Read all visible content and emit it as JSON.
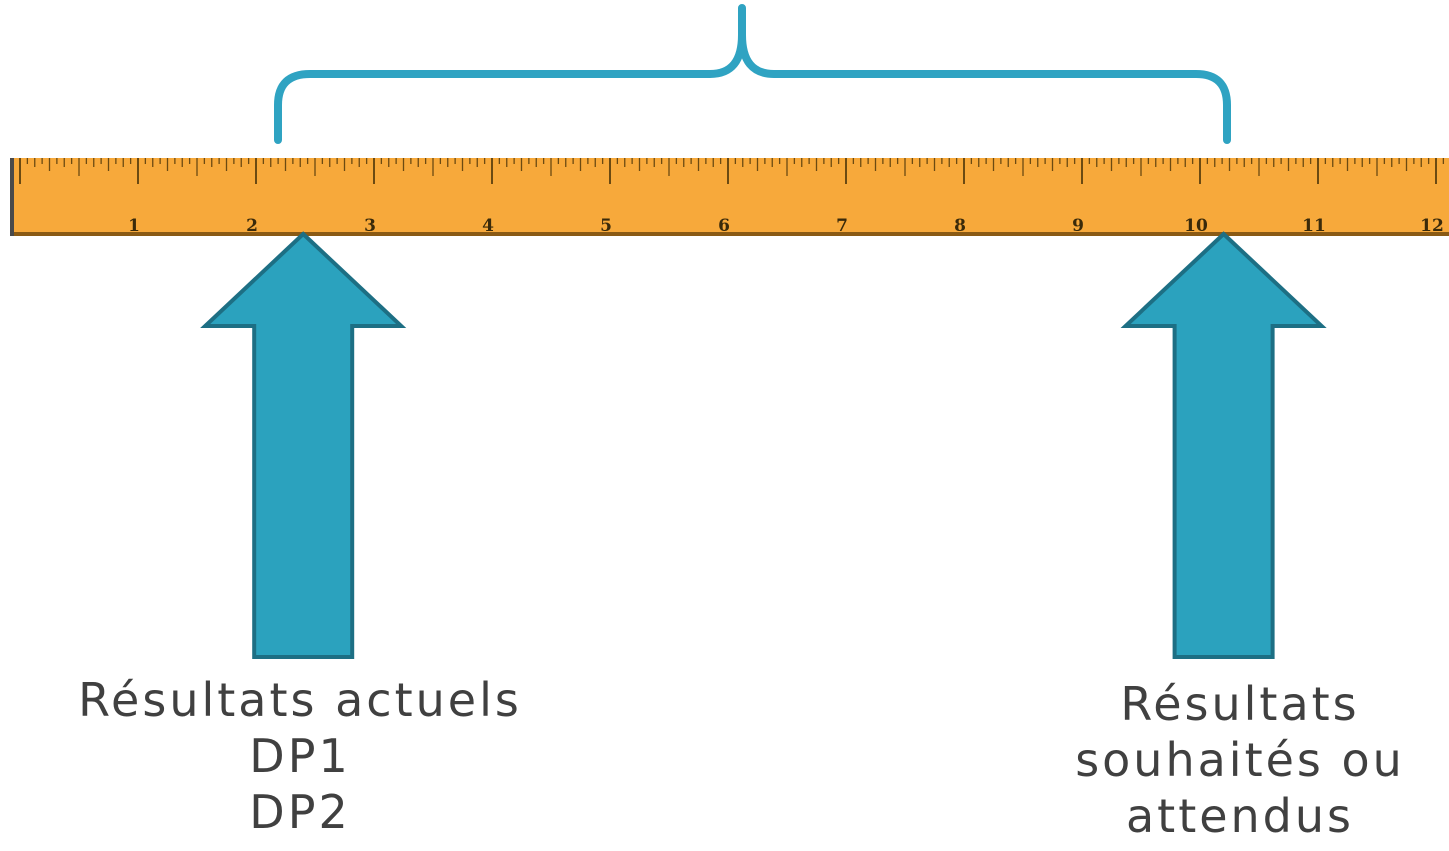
{
  "ruler": {
    "tick_labels": [
      "1",
      "2",
      "3",
      "4",
      "5",
      "6",
      "7",
      "8",
      "9",
      "10",
      "11",
      "12"
    ],
    "color": "#F7A93B",
    "tick_color": "#6B4A12"
  },
  "markers": {
    "current_value": 2.4,
    "desired_value": 10.2,
    "color": "#2BA2BE",
    "outline_color": "#1D6F84"
  },
  "brace": {
    "color": "#2FA3C2"
  },
  "captions": {
    "current": {
      "line1": "Résultats actuels",
      "line2": "DP1",
      "line3": "DP2"
    },
    "desired": {
      "line1": "Résultats",
      "line2": "souhaités ou",
      "line3": "attendus"
    }
  }
}
